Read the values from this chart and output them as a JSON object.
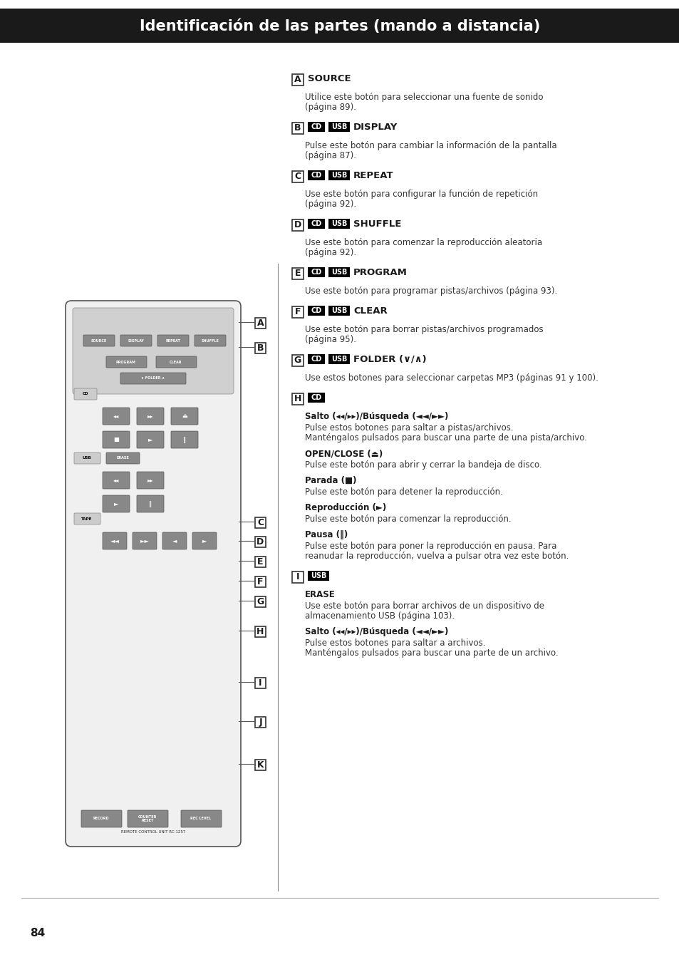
{
  "title": "Identificación de las partes (mando a distancia)",
  "title_bg": "#1a1a1a",
  "title_color": "#ffffff",
  "page_number": "84",
  "page_bg": "#ffffff",
  "text_color": "#1a1a1a",
  "divider_color": "#cccccc",
  "label_bg": "#000000",
  "label_text_color": "#ffffff",
  "entries": [
    {
      "letter": "A",
      "tags": [],
      "heading": "SOURCE",
      "body": "Utilice este botón para seleccionar una fuente de sonido\n(página 89)."
    },
    {
      "letter": "B",
      "tags": [
        "CD",
        "USB"
      ],
      "heading": "DISPLAY",
      "body": "Pulse este botón para cambiar la información de la pantalla\n(página 87)."
    },
    {
      "letter": "C",
      "tags": [
        "CD",
        "USB"
      ],
      "heading": "REPEAT",
      "body": "Use este botón para configurar la función de repetición\n(página 92)."
    },
    {
      "letter": "D",
      "tags": [
        "CD",
        "USB"
      ],
      "heading": "SHUFFLE",
      "body": "Use este botón para comenzar la reproducción aleatoria\n(página 92)."
    },
    {
      "letter": "E",
      "tags": [
        "CD",
        "USB"
      ],
      "heading": "PROGRAM",
      "body": "Use este botón para programar pistas/archivos (página 93)."
    },
    {
      "letter": "F",
      "tags": [
        "CD",
        "USB"
      ],
      "heading": "CLEAR",
      "body": "Use este botón para borrar pistas/archivos programados\n(página 95)."
    },
    {
      "letter": "G",
      "tags": [
        "CD",
        "USB"
      ],
      "heading": "FOLDER (∨/∧)",
      "body": "Use estos botones para seleccionar carpetas MP3 (páginas 91 y 100)."
    },
    {
      "letter": "H",
      "tags": [
        "CD"
      ],
      "heading": null,
      "body": null,
      "subentries": [
        {
          "subhead": "Salto (◂◂/▸▸)/Búsqueda (◄◄/►►)",
          "text": "Pulse estos botones para saltar a pistas/archivos.\nManténgalos pulsados para buscar una parte de una pista/archivo."
        },
        {
          "subhead": "OPEN/CLOSE (⏏)",
          "text": "Pulse este botón para abrir y cerrar la bandeja de disco."
        },
        {
          "subhead": "Parada (■)",
          "text": "Pulse este botón para detener la reproducción."
        },
        {
          "subhead": "Reproducción (►)",
          "text": "Pulse este botón para comenzar la reproducción."
        },
        {
          "subhead": "Pausa (‖)",
          "text": "Pulse este botón para poner la reproducción en pausa. Para\nreanudar la reproducción, vuelva a pulsar otra vez este botón."
        }
      ]
    },
    {
      "letter": "I",
      "tags": [
        "USB"
      ],
      "heading": null,
      "body": null,
      "subentries": [
        {
          "subhead": "ERASE",
          "text": "Use este botón para borrar archivos de un dispositivo de\nalmacenamiento USB (página 103)."
        },
        {
          "subhead": "Salto (◂◂/▸▸)/Búsqueda (◄◄/►►)",
          "text": "Pulse estos botones para saltar a archivos.\nManténgalos pulsados para buscar una parte de un archivo."
        }
      ]
    }
  ]
}
